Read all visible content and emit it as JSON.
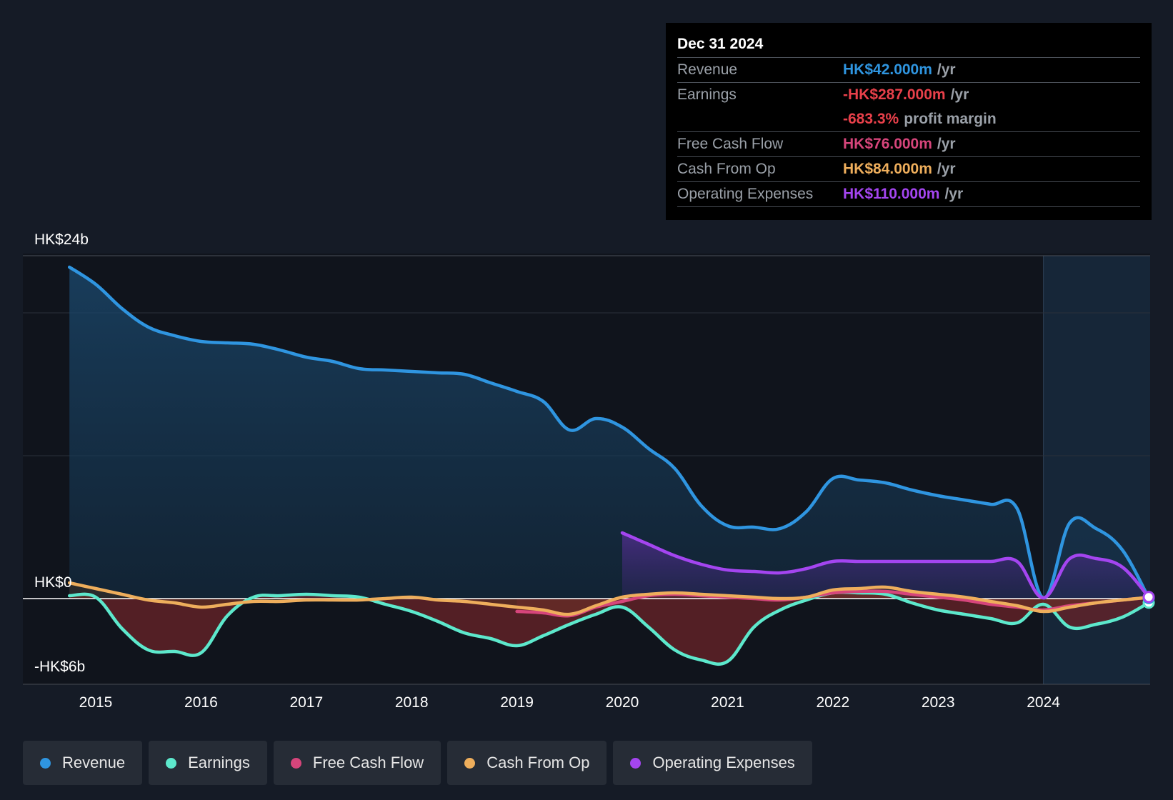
{
  "colors": {
    "background": "#151b26",
    "plot_background": "#10141c",
    "revenue": "#2f95e0",
    "earnings": "#5de8cc",
    "free_cash_flow": "#d6457b",
    "cash_from_op": "#eeae5c",
    "operating_expenses": "#a445f0",
    "grid": "#2a303a",
    "zero_line": "#ffffff"
  },
  "tooltip": {
    "date": "Dec 31 2024",
    "rows": [
      {
        "label": "Revenue",
        "value": "HK$42.000m",
        "unit": "/yr",
        "color": "#2f95e0"
      },
      {
        "label": "Earnings",
        "value": "-HK$287.000m",
        "unit": "/yr",
        "color": "#e8404a"
      },
      {
        "label": "",
        "value": "-683.3%",
        "unit": "profit margin",
        "color": "#e8404a"
      },
      {
        "label": "Free Cash Flow",
        "value": "HK$76.000m",
        "unit": "/yr",
        "color": "#d6457b"
      },
      {
        "label": "Cash From Op",
        "value": "HK$84.000m",
        "unit": "/yr",
        "color": "#eeae5c"
      },
      {
        "label": "Operating Expenses",
        "value": "HK$110.000m",
        "unit": "/yr",
        "color": "#a445f0"
      }
    ]
  },
  "legend": [
    {
      "label": "Revenue",
      "color": "#2f95e0"
    },
    {
      "label": "Earnings",
      "color": "#5de8cc"
    },
    {
      "label": "Free Cash Flow",
      "color": "#d6457b"
    },
    {
      "label": "Cash From Op",
      "color": "#eeae5c"
    },
    {
      "label": "Operating Expenses",
      "color": "#a445f0"
    }
  ],
  "chart_data": {
    "type": "area",
    "y_unit": "HK$b",
    "ylim": [
      -6,
      24
    ],
    "xlim": [
      2014.25,
      2025.0
    ],
    "y_tick_labels": [
      {
        "value": 24,
        "label": "HK$24b"
      },
      {
        "value": 0,
        "label": "HK$0"
      },
      {
        "value": -6,
        "label": "-HK$6b"
      }
    ],
    "x_ticks": [
      2015,
      2016,
      2017,
      2018,
      2019,
      2020,
      2021,
      2022,
      2023,
      2024
    ],
    "x_tick_labels": [
      "2015",
      "2016",
      "2017",
      "2018",
      "2019",
      "2020",
      "2021",
      "2022",
      "2023",
      "2024"
    ],
    "gridlines": [
      24,
      20,
      10,
      0,
      -6
    ],
    "highlight_start": 2024.0,
    "series": [
      {
        "name": "Revenue",
        "key": "revenue",
        "x": [
          2014.75,
          2015.0,
          2015.25,
          2015.5,
          2015.75,
          2016.0,
          2016.25,
          2016.5,
          2016.75,
          2017.0,
          2017.25,
          2017.5,
          2017.75,
          2018.0,
          2018.25,
          2018.5,
          2018.75,
          2019.0,
          2019.25,
          2019.5,
          2019.75,
          2020.0,
          2020.25,
          2020.5,
          2020.75,
          2021.0,
          2021.25,
          2021.5,
          2021.75,
          2022.0,
          2022.25,
          2022.5,
          2022.75,
          2023.0,
          2023.25,
          2023.5,
          2023.75,
          2024.0,
          2024.25,
          2024.5,
          2024.75,
          2025.0
        ],
        "y": [
          23.2,
          22.0,
          20.3,
          19.0,
          18.4,
          18.0,
          17.9,
          17.8,
          17.4,
          16.9,
          16.6,
          16.1,
          16.0,
          15.9,
          15.8,
          15.7,
          15.1,
          14.5,
          13.8,
          11.8,
          12.6,
          12.0,
          10.5,
          9.1,
          6.5,
          5.1,
          5.0,
          4.9,
          6.1,
          8.4,
          8.3,
          8.1,
          7.6,
          7.2,
          6.9,
          6.6,
          6.3,
          0.05,
          5.3,
          4.9,
          3.4,
          0.04
        ]
      },
      {
        "name": "Earnings",
        "key": "earnings",
        "x": [
          2014.75,
          2015.0,
          2015.25,
          2015.5,
          2015.75,
          2016.0,
          2016.25,
          2016.5,
          2016.75,
          2017.0,
          2017.25,
          2017.5,
          2017.75,
          2018.0,
          2018.25,
          2018.5,
          2018.75,
          2019.0,
          2019.25,
          2019.5,
          2019.75,
          2020.0,
          2020.25,
          2020.5,
          2020.75,
          2021.0,
          2021.25,
          2021.5,
          2021.75,
          2022.0,
          2022.25,
          2022.5,
          2022.75,
          2023.0,
          2023.25,
          2023.5,
          2023.75,
          2024.0,
          2024.25,
          2024.5,
          2024.75,
          2025.0
        ],
        "y": [
          0.2,
          0.1,
          -2.1,
          -3.6,
          -3.7,
          -3.8,
          -1.2,
          0.1,
          0.2,
          0.3,
          0.2,
          0.1,
          -0.4,
          -0.9,
          -1.6,
          -2.4,
          -2.8,
          -3.3,
          -2.6,
          -1.8,
          -1.1,
          -0.6,
          -2.0,
          -3.6,
          -4.3,
          -4.4,
          -2.0,
          -0.8,
          -0.1,
          0.4,
          0.4,
          0.3,
          -0.3,
          -0.8,
          -1.1,
          -1.4,
          -1.7,
          -0.4,
          -2.0,
          -1.8,
          -1.3,
          -0.29
        ]
      },
      {
        "name": "Free Cash Flow",
        "key": "free_cash_flow",
        "x": [
          2019.0,
          2019.25,
          2019.5,
          2019.75,
          2020.0,
          2020.25,
          2020.5,
          2020.75,
          2021.0,
          2021.25,
          2021.5,
          2021.75,
          2022.0,
          2022.25,
          2022.5,
          2022.75,
          2023.0,
          2023.25,
          2023.5,
          2023.75,
          2024.0,
          2024.25,
          2024.5,
          2024.75,
          2025.0
        ],
        "y": [
          -0.9,
          -1.0,
          -1.2,
          -0.6,
          -0.2,
          0.2,
          0.3,
          0.2,
          0.1,
          0.0,
          -0.1,
          0.1,
          0.4,
          0.5,
          0.5,
          0.3,
          0.1,
          -0.1,
          -0.4,
          -0.6,
          -0.8,
          -0.5,
          -0.3,
          -0.1,
          0.076
        ]
      },
      {
        "name": "Cash From Op",
        "key": "cash_from_op",
        "x": [
          2014.75,
          2015.0,
          2015.25,
          2015.5,
          2015.75,
          2016.0,
          2016.25,
          2016.5,
          2016.75,
          2017.0,
          2017.25,
          2017.5,
          2017.75,
          2018.0,
          2018.25,
          2018.5,
          2018.75,
          2019.0,
          2019.25,
          2019.5,
          2019.75,
          2020.0,
          2020.25,
          2020.5,
          2020.75,
          2021.0,
          2021.25,
          2021.5,
          2021.75,
          2022.0,
          2022.25,
          2022.5,
          2022.75,
          2023.0,
          2023.25,
          2023.5,
          2023.75,
          2024.0,
          2024.25,
          2024.5,
          2024.75,
          2025.0
        ],
        "y": [
          1.1,
          0.7,
          0.3,
          -0.1,
          -0.3,
          -0.6,
          -0.4,
          -0.2,
          -0.2,
          -0.1,
          -0.1,
          -0.1,
          0.0,
          0.1,
          -0.1,
          -0.2,
          -0.4,
          -0.6,
          -0.8,
          -1.1,
          -0.5,
          0.1,
          0.3,
          0.4,
          0.3,
          0.2,
          0.1,
          0.0,
          0.1,
          0.6,
          0.7,
          0.8,
          0.5,
          0.3,
          0.1,
          -0.2,
          -0.5,
          -0.9,
          -0.6,
          -0.3,
          -0.1,
          0.084
        ]
      },
      {
        "name": "Operating Expenses",
        "key": "operating_expenses",
        "x": [
          2020.0,
          2020.25,
          2020.5,
          2020.75,
          2021.0,
          2021.25,
          2021.5,
          2021.75,
          2022.0,
          2022.25,
          2022.5,
          2022.75,
          2023.0,
          2023.25,
          2023.5,
          2023.75,
          2024.0,
          2024.25,
          2024.5,
          2024.75,
          2025.0
        ],
        "y": [
          4.6,
          3.8,
          3.0,
          2.4,
          2.0,
          1.9,
          1.8,
          2.1,
          2.6,
          2.6,
          2.6,
          2.6,
          2.6,
          2.6,
          2.6,
          2.6,
          0.05,
          2.8,
          2.8,
          2.2,
          0.11
        ]
      }
    ]
  }
}
